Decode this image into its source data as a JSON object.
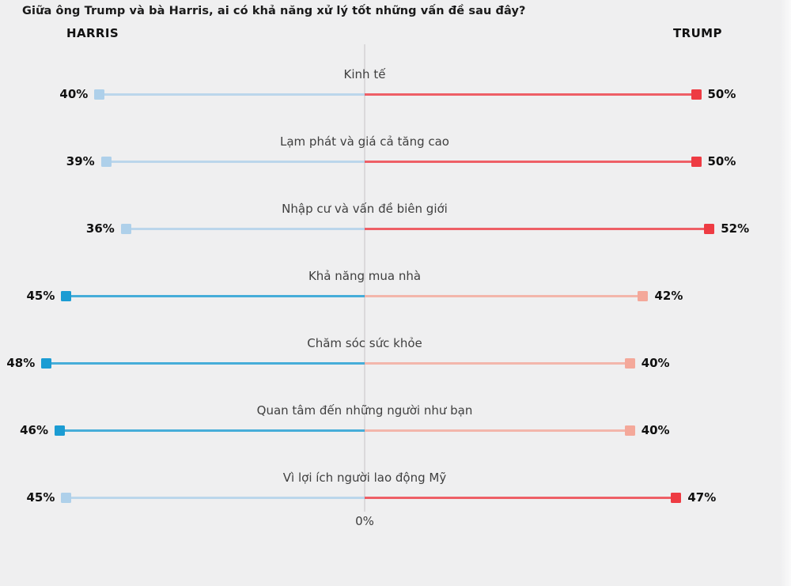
{
  "title": "Giữa ông Trump và bà Harris, ai có khả năng xử lý tốt những vấn đề sau đây?",
  "headers": {
    "left": "HARRIS",
    "right": "TRUMP"
  },
  "axis": {
    "zero_label": "0%"
  },
  "colors": {
    "background": "#efeff0",
    "harris_strong": "#1b9cd3",
    "harris_light": "#aed0ea",
    "trump_strong": "#ee3b43",
    "trump_light": "#f4a89a",
    "axis_line": "#dbd9db",
    "category_text": "#3f3f3f",
    "value_text": "#101010"
  },
  "chart_data": {
    "type": "diverging-lollipop",
    "title": "Giữa ông Trump và bà Harris, ai có khả năng xử lý tốt những vấn đề sau đây?",
    "categories": [
      "Kinh tế",
      "Lạm phát và giá cả tăng cao",
      "Nhập cư và vấn đề biên giới",
      "Khả năng mua nhà",
      "Chăm sóc sức khỏe",
      "Quan tâm đến những người như bạn",
      "Vì lợi ích người lao động Mỹ"
    ],
    "series": [
      {
        "name": "Harris",
        "side": "left",
        "values": [
          40,
          39,
          36,
          45,
          48,
          46,
          45
        ]
      },
      {
        "name": "Trump",
        "side": "right",
        "values": [
          50,
          50,
          52,
          42,
          40,
          40,
          47
        ]
      }
    ],
    "value_suffix": "%",
    "xlim": [
      -55,
      55
    ],
    "zero_label": "0%",
    "legend_position": "top",
    "note": "leader of each row shown in strong color, trailing side in light color"
  }
}
